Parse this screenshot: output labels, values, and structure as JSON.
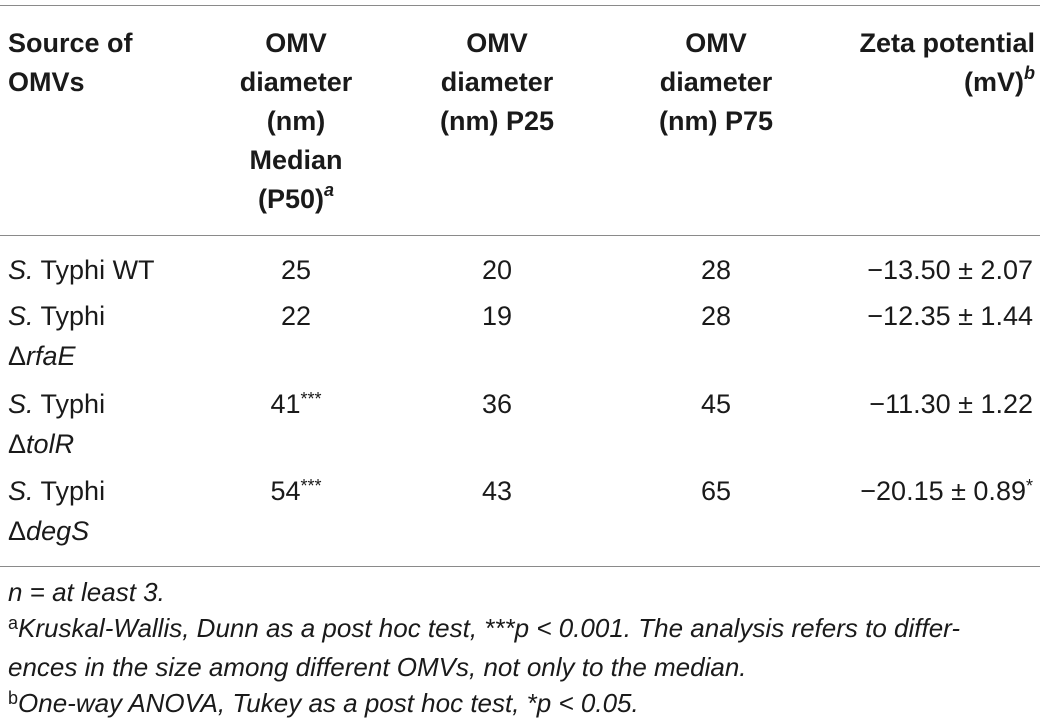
{
  "table": {
    "headers": [
      [
        "Source of",
        "OMVs"
      ],
      [
        "OMV",
        "diameter",
        "(nm)",
        "Median",
        "(P50)"
      ],
      [
        "OMV",
        "diameter",
        "(nm) P25"
      ],
      [
        "OMV",
        "diameter",
        "(nm) P75"
      ],
      [
        "Zeta potential",
        "(mV)"
      ]
    ],
    "header_marks": {
      "median": "a",
      "zeta": "b"
    },
    "rows": [
      {
        "prefix": "S.",
        "name": "Typhi WT",
        "mutant": "",
        "median": "25",
        "median_mark": "",
        "p25": "20",
        "p75": "28",
        "zeta": "−13.50 ± 2.07",
        "zeta_mark": ""
      },
      {
        "prefix": "S.",
        "name": "Typhi",
        "mutant_delta": "Δ",
        "mutant": "rfaE",
        "median": "22",
        "median_mark": "",
        "p25": "19",
        "p75": "28",
        "zeta": "−12.35 ± 1.44",
        "zeta_mark": ""
      },
      {
        "prefix": "S.",
        "name": "Typhi",
        "mutant_delta": "Δ",
        "mutant": "tolR",
        "median": "41",
        "median_mark": "***",
        "p25": "36",
        "p75": "45",
        "zeta": "−11.30 ± 1.22",
        "zeta_mark": ""
      },
      {
        "prefix": "S.",
        "name": "Typhi",
        "mutant_delta": "Δ",
        "mutant": "degS",
        "median": "54",
        "median_mark": "***",
        "p25": "43",
        "p75": "65",
        "zeta": "−20.15 ± 0.89",
        "zeta_mark": "*"
      }
    ]
  },
  "footnotes": {
    "n": "n = at least 3.",
    "a_mark": "a",
    "a_line1": "Kruskal-Wallis, Dunn as a post hoc test, ***p < 0.001. The analysis refers to differ-",
    "a_line2": "ences in the size among different OMVs, not only to the median.",
    "b_mark": "b",
    "b_line1": "One-way ANOVA, Tukey as a post hoc test, *p < 0.05."
  }
}
